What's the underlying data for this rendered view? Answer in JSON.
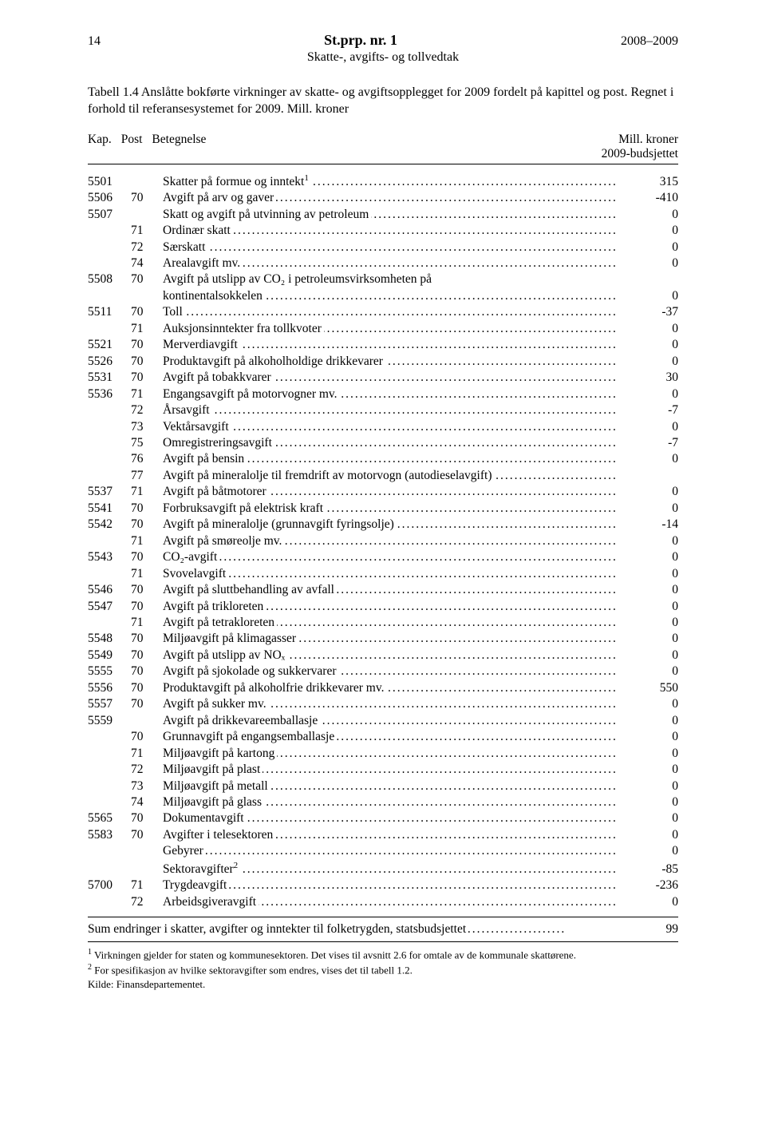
{
  "header": {
    "page_number": "14",
    "title": "St.prp. nr. 1",
    "year_range": "2008–2009",
    "subtitle": "Skatte-, avgifts- og tollvedtak"
  },
  "caption": "Tabell 1.4 Anslåtte bokførte virkninger av skatte- og avgiftsopplegget for 2009 fordelt på kapittel og post. Regnet i forhold til referansesystemet for 2009. Mill. kroner",
  "columns": {
    "kap": "Kap.",
    "post": "Post",
    "betegnelse": "Betegnelse",
    "value_line1": "Mill. kroner",
    "value_line2": "2009-budsjettet"
  },
  "rows": [
    {
      "kap": "5501",
      "post": "",
      "desc": "Skatter på formue og inntekt",
      "sup": "1",
      "val": "315"
    },
    {
      "kap": "5506",
      "post": "70",
      "desc": "Avgift på arv og gaver",
      "val": "-410"
    },
    {
      "kap": "5507",
      "post": "",
      "desc": "Skatt og avgift på utvinning av petroleum",
      "val": "0"
    },
    {
      "kap": "",
      "post": "71",
      "desc": "Ordinær skatt",
      "val": "0"
    },
    {
      "kap": "",
      "post": "72",
      "desc": "Særskatt",
      "val": "0"
    },
    {
      "kap": "",
      "post": "74",
      "desc": "Arealavgift mv.",
      "val": "0"
    },
    {
      "kap": "5508",
      "post": "70",
      "desc": "Avgift på utslipp av CO₂ i petroleumsvirksomheten på",
      "val": "",
      "noleader": true
    },
    {
      "kap": "",
      "post": "",
      "desc": "kontinentalsokkelen",
      "val": "0"
    },
    {
      "kap": "5511",
      "post": "70",
      "desc": "Toll",
      "val": "-37"
    },
    {
      "kap": "",
      "post": "71",
      "desc": "Auksjonsinntekter fra tollkvoter",
      "val": "0"
    },
    {
      "kap": "5521",
      "post": "70",
      "desc": "Merverdiavgift",
      "val": "0"
    },
    {
      "kap": "5526",
      "post": "70",
      "desc": "Produktavgift på alkoholholdige drikkevarer",
      "val": "0"
    },
    {
      "kap": "5531",
      "post": "70",
      "desc": "Avgift på tobakkvarer",
      "val": "30"
    },
    {
      "kap": "5536",
      "post": "71",
      "desc": "Engangsavgift på motorvogner mv.",
      "val": "0"
    },
    {
      "kap": "",
      "post": "72",
      "desc": "Årsavgift",
      "val": "-7"
    },
    {
      "kap": "",
      "post": "73",
      "desc": "Vektårsavgift",
      "val": "0"
    },
    {
      "kap": "",
      "post": "75",
      "desc": "Omregistreringsavgift",
      "val": "-7"
    },
    {
      "kap": "",
      "post": "76",
      "desc": "Avgift på bensin",
      "val": "0"
    },
    {
      "kap": "",
      "post": "77",
      "desc": "Avgift på mineralolje til fremdrift av motorvogn (autodieselavgift)",
      "val": ""
    },
    {
      "kap": "5537",
      "post": "71",
      "desc": "Avgift på båtmotorer",
      "val": "0"
    },
    {
      "kap": "5541",
      "post": "70",
      "desc": "Forbruksavgift på elektrisk kraft",
      "val": "0"
    },
    {
      "kap": "5542",
      "post": "70",
      "desc": "Avgift på mineralolje (grunnavgift fyringsolje)",
      "val": "-14"
    },
    {
      "kap": "",
      "post": "71",
      "desc": "Avgift på smøreolje mv.",
      "val": "0"
    },
    {
      "kap": "5543",
      "post": "70",
      "desc": "CO₂-avgift",
      "val": "0"
    },
    {
      "kap": "",
      "post": "71",
      "desc": "Svovelavgift",
      "val": "0"
    },
    {
      "kap": "5546",
      "post": "70",
      "desc": "Avgift på sluttbehandling av avfall",
      "val": "0"
    },
    {
      "kap": "5547",
      "post": "70",
      "desc": "Avgift på trikloreten",
      "val": "0"
    },
    {
      "kap": "",
      "post": "71",
      "desc": "Avgift på tetrakloreten",
      "val": "0"
    },
    {
      "kap": "5548",
      "post": "70",
      "desc": "Miljøavgift på klimagasser",
      "val": "0"
    },
    {
      "kap": "5549",
      "post": "70",
      "desc": "Avgift på utslipp av NOₓ",
      "val": "0"
    },
    {
      "kap": "5555",
      "post": "70",
      "desc": "Avgift på sjokolade og sukkervarer",
      "val": "0"
    },
    {
      "kap": "5556",
      "post": "70",
      "desc": "Produktavgift på alkoholfrie drikkevarer mv.",
      "val": "550"
    },
    {
      "kap": "5557",
      "post": "70",
      "desc": "Avgift på sukker mv.",
      "val": "0"
    },
    {
      "kap": "5559",
      "post": "",
      "desc": "Avgift på drikkevareemballasje",
      "val": "0"
    },
    {
      "kap": "",
      "post": "70",
      "desc": "Grunnavgift på engangsemballasje",
      "val": "0"
    },
    {
      "kap": "",
      "post": "71",
      "desc": "Miljøavgift på kartong",
      "val": "0"
    },
    {
      "kap": "",
      "post": "72",
      "desc": "Miljøavgift på plast",
      "val": "0"
    },
    {
      "kap": "",
      "post": "73",
      "desc": "Miljøavgift på metall",
      "val": "0"
    },
    {
      "kap": "",
      "post": "74",
      "desc": "Miljøavgift på glass",
      "val": "0"
    },
    {
      "kap": "5565",
      "post": "70",
      "desc": "Dokumentavgift",
      "val": "0"
    },
    {
      "kap": "5583",
      "post": "70",
      "desc": "Avgifter i telesektoren",
      "val": "0"
    },
    {
      "kap": "",
      "post": "",
      "desc": "Gebyrer",
      "val": "0"
    },
    {
      "kap": "",
      "post": "",
      "desc": "Sektoravgifter",
      "sup": "2",
      "val": "-85"
    },
    {
      "kap": "5700",
      "post": "71",
      "desc": "Trygdeavgift",
      "val": "-236"
    },
    {
      "kap": "",
      "post": "72",
      "desc": "Arbeidsgiveravgift",
      "val": "0"
    }
  ],
  "sum": {
    "desc": "Sum endringer i skatter, avgifter og inntekter til folketrygden, statsbudsjettet",
    "val": "99"
  },
  "footnotes": {
    "f1": "Virkningen gjelder for staten og kommunesektoren. Det vises til avsnitt 2.6 for omtale av de kommunale skattørene.",
    "f2": "For spesifikasjon av hvilke sektoravgifter som endres, vises det til tabell 1.2.",
    "source": "Kilde: Finansdepartementet."
  }
}
